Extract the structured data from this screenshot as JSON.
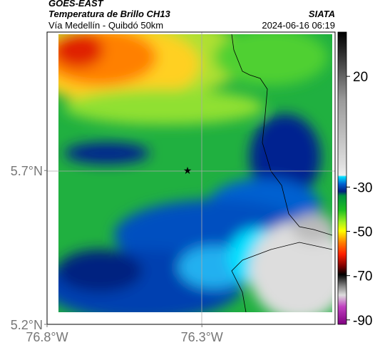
{
  "header": {
    "title": "GOES-EAST",
    "subtitle": "Temperatura de Brillo CH13",
    "source": "SIATA",
    "location": "Vía Medellín - Quibdó 50km",
    "timestamp": "2024-06-16 06:19"
  },
  "map": {
    "xlim": [
      -76.8,
      -75.87
    ],
    "ylim": [
      5.2,
      6.15
    ],
    "xticks": [
      {
        "value": -76.8,
        "label": "76.8°W"
      },
      {
        "value": -76.3,
        "label": "76.3°W"
      }
    ],
    "yticks": [
      {
        "value": 5.7,
        "label": "5.7°N"
      },
      {
        "value": 5.2,
        "label": "5.2°N"
      }
    ]
  },
  "colorbar": {
    "lim": [
      -92,
      40
    ],
    "ticks": [
      20,
      -30,
      -50,
      -70,
      -90
    ]
  }
}
